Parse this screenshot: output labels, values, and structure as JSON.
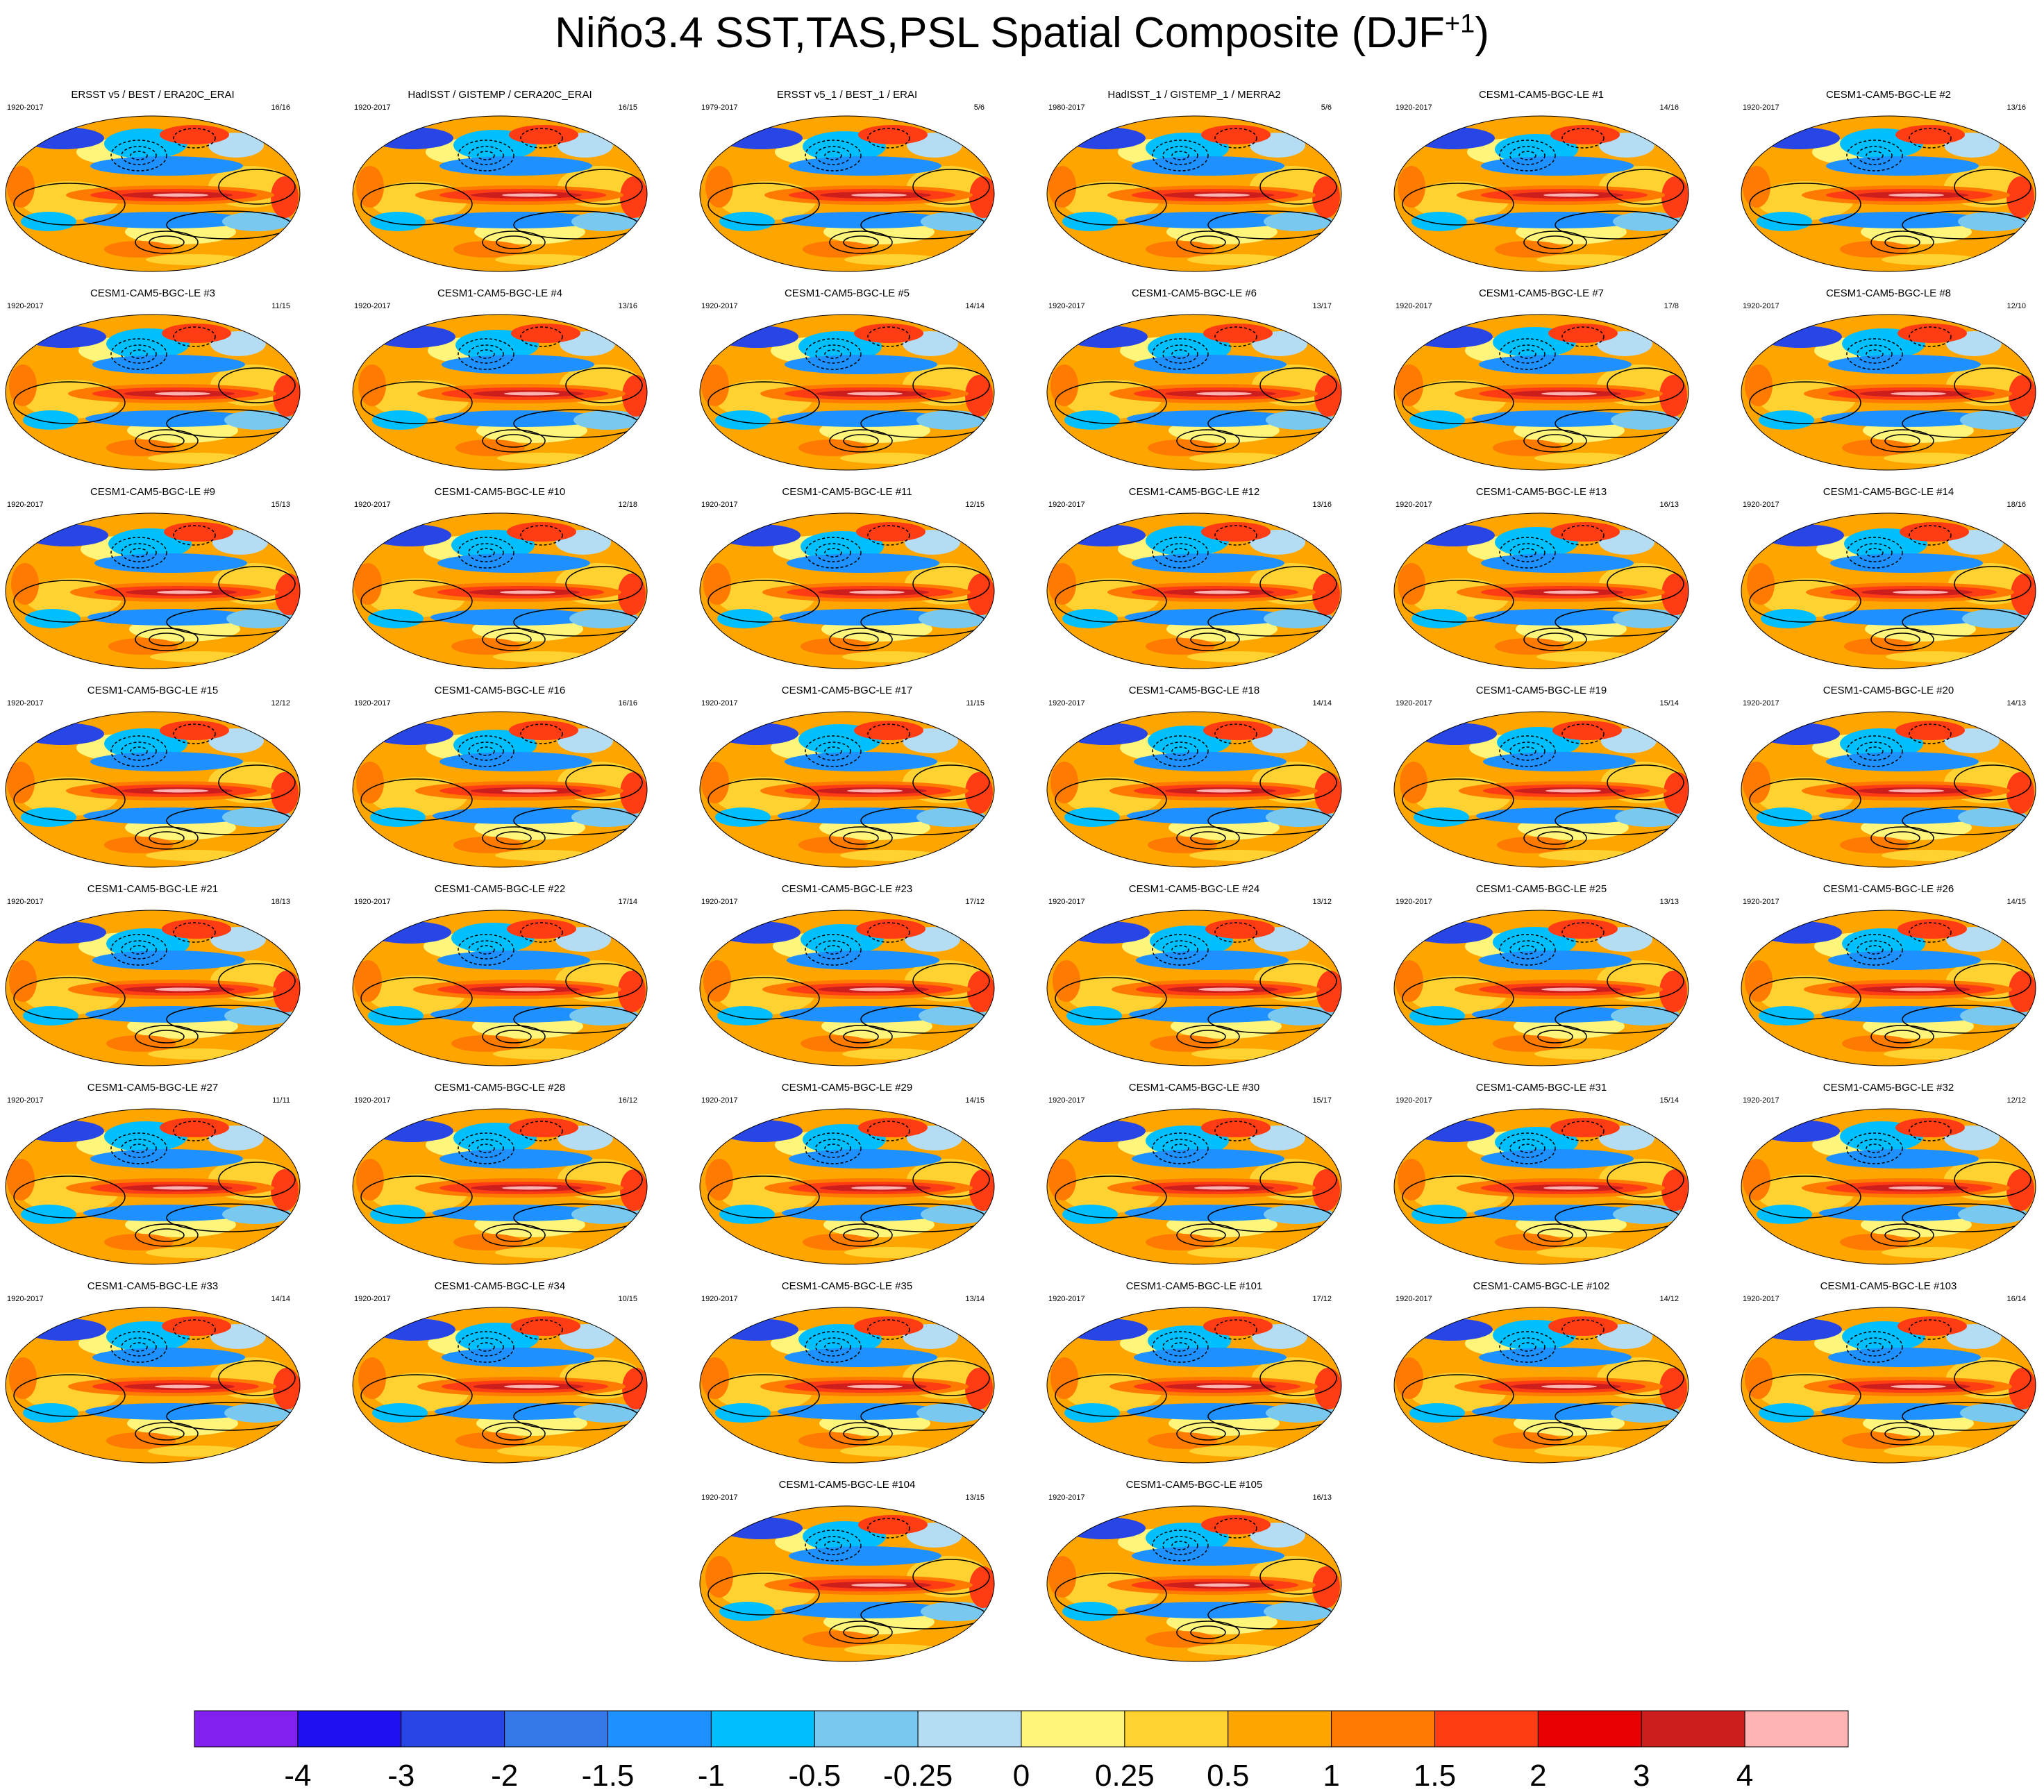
{
  "figure": {
    "title_main": "Niño3.4 SST,TAS,PSL Spatial Composite (DJF",
    "title_sup": "+1",
    "title_end": ")"
  },
  "chart_data": {
    "type": "heatmap",
    "description_kind": "map-composites",
    "colorbar": {
      "labels": [
        "-4",
        "-3",
        "-2",
        "-1.5",
        "-1",
        "-0.5",
        "-0.25",
        "0",
        "0.25",
        "0.5",
        "1",
        "1.5",
        "2",
        "3",
        "4"
      ],
      "colors": [
        "#8220f0",
        "#1e10f0",
        "#2846e6",
        "#3478ea",
        "#1e90ff",
        "#00bfff",
        "#78c8f0",
        "#b4dcf2",
        "#fff57a",
        "#ffd232",
        "#ffa500",
        "#ff7a00",
        "#ff3c14",
        "#e60000",
        "#cd1e1e",
        "#ffb4b4"
      ]
    },
    "panels": [
      {
        "title": "ERSST v5 / BEST / ERA20C_ERAI",
        "range": "1920-2017",
        "count": "16/16"
      },
      {
        "title": "HadISST / GISTEMP / CERA20C_ERAI",
        "range": "1920-2017",
        "count": "16/15"
      },
      {
        "title": "ERSST v5_1 / BEST_1 / ERAI",
        "range": "1979-2017",
        "count": "5/6"
      },
      {
        "title": "HadISST_1 / GISTEMP_1 / MERRA2",
        "range": "1980-2017",
        "count": "5/6"
      },
      {
        "title": "CESM1-CAM5-BGC-LE #1",
        "range": "1920-2017",
        "count": "14/16"
      },
      {
        "title": "CESM1-CAM5-BGC-LE #2",
        "range": "1920-2017",
        "count": "13/16"
      },
      {
        "title": "CESM1-CAM5-BGC-LE #3",
        "range": "1920-2017",
        "count": "11/15"
      },
      {
        "title": "CESM1-CAM5-BGC-LE #4",
        "range": "1920-2017",
        "count": "13/16"
      },
      {
        "title": "CESM1-CAM5-BGC-LE #5",
        "range": "1920-2017",
        "count": "14/14"
      },
      {
        "title": "CESM1-CAM5-BGC-LE #6",
        "range": "1920-2017",
        "count": "13/17"
      },
      {
        "title": "CESM1-CAM5-BGC-LE #7",
        "range": "1920-2017",
        "count": "17/8"
      },
      {
        "title": "CESM1-CAM5-BGC-LE #8",
        "range": "1920-2017",
        "count": "12/10"
      },
      {
        "title": "CESM1-CAM5-BGC-LE #9",
        "range": "1920-2017",
        "count": "15/13"
      },
      {
        "title": "CESM1-CAM5-BGC-LE #10",
        "range": "1920-2017",
        "count": "12/18"
      },
      {
        "title": "CESM1-CAM5-BGC-LE #11",
        "range": "1920-2017",
        "count": "12/15"
      },
      {
        "title": "CESM1-CAM5-BGC-LE #12",
        "range": "1920-2017",
        "count": "13/16"
      },
      {
        "title": "CESM1-CAM5-BGC-LE #13",
        "range": "1920-2017",
        "count": "16/13"
      },
      {
        "title": "CESM1-CAM5-BGC-LE #14",
        "range": "1920-2017",
        "count": "18/16"
      },
      {
        "title": "CESM1-CAM5-BGC-LE #15",
        "range": "1920-2017",
        "count": "12/12"
      },
      {
        "title": "CESM1-CAM5-BGC-LE #16",
        "range": "1920-2017",
        "count": "16/16"
      },
      {
        "title": "CESM1-CAM5-BGC-LE #17",
        "range": "1920-2017",
        "count": "11/15"
      },
      {
        "title": "CESM1-CAM5-BGC-LE #18",
        "range": "1920-2017",
        "count": "14/14"
      },
      {
        "title": "CESM1-CAM5-BGC-LE #19",
        "range": "1920-2017",
        "count": "15/14"
      },
      {
        "title": "CESM1-CAM5-BGC-LE #20",
        "range": "1920-2017",
        "count": "14/13"
      },
      {
        "title": "CESM1-CAM5-BGC-LE #21",
        "range": "1920-2017",
        "count": "18/13"
      },
      {
        "title": "CESM1-CAM5-BGC-LE #22",
        "range": "1920-2017",
        "count": "17/14"
      },
      {
        "title": "CESM1-CAM5-BGC-LE #23",
        "range": "1920-2017",
        "count": "17/12"
      },
      {
        "title": "CESM1-CAM5-BGC-LE #24",
        "range": "1920-2017",
        "count": "13/12"
      },
      {
        "title": "CESM1-CAM5-BGC-LE #25",
        "range": "1920-2017",
        "count": "13/13"
      },
      {
        "title": "CESM1-CAM5-BGC-LE #26",
        "range": "1920-2017",
        "count": "14/15"
      },
      {
        "title": "CESM1-CAM5-BGC-LE #27",
        "range": "1920-2017",
        "count": "11/11"
      },
      {
        "title": "CESM1-CAM5-BGC-LE #28",
        "range": "1920-2017",
        "count": "16/12"
      },
      {
        "title": "CESM1-CAM5-BGC-LE #29",
        "range": "1920-2017",
        "count": "14/15"
      },
      {
        "title": "CESM1-CAM5-BGC-LE #30",
        "range": "1920-2017",
        "count": "15/17"
      },
      {
        "title": "CESM1-CAM5-BGC-LE #31",
        "range": "1920-2017",
        "count": "15/14"
      },
      {
        "title": "CESM1-CAM5-BGC-LE #32",
        "range": "1920-2017",
        "count": "12/12"
      },
      {
        "title": "CESM1-CAM5-BGC-LE #33",
        "range": "1920-2017",
        "count": "14/14"
      },
      {
        "title": "CESM1-CAM5-BGC-LE #34",
        "range": "1920-2017",
        "count": "10/15"
      },
      {
        "title": "CESM1-CAM5-BGC-LE #35",
        "range": "1920-2017",
        "count": "13/14"
      },
      {
        "title": "CESM1-CAM5-BGC-LE #101",
        "range": "1920-2017",
        "count": "17/12"
      },
      {
        "title": "CESM1-CAM5-BGC-LE #102",
        "range": "1920-2017",
        "count": "14/12"
      },
      {
        "title": "CESM1-CAM5-BGC-LE #103",
        "range": "1920-2017",
        "count": "16/14"
      },
      {
        "title": "CESM1-CAM5-BGC-LE #104",
        "range": "1920-2017",
        "count": "13/15"
      },
      {
        "title": "CESM1-CAM5-BGC-LE #105",
        "range": "1920-2017",
        "count": "16/13"
      }
    ]
  }
}
